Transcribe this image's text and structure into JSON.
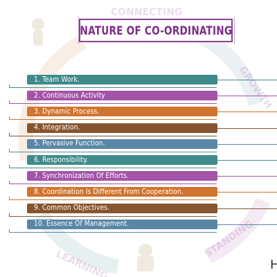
{
  "title": "NATURE OF CO-ORDINATING",
  "items": [
    {
      "label": "1. Team Work.",
      "color": "#3f8a8a"
    },
    {
      "label": "2. Continuous Activity",
      "color": "#a354a8"
    },
    {
      "label": "3. Dynamic Process.",
      "color": "#d0742f"
    },
    {
      "label": "4. Integration.",
      "color": "#86552f"
    },
    {
      "label": "5. Pervasive Function.",
      "color": "#5a87a6"
    },
    {
      "label": "6. Responsibility.",
      "color": "#3f8a8a"
    },
    {
      "label": "7. Synchronization Of Efforts.",
      "color": "#a354a8"
    },
    {
      "label": "8. Coordination Is Different From Cooperation.",
      "color": "#d0742f"
    },
    {
      "label": "9. Common Objectives.",
      "color": "#86552f"
    },
    {
      "label": "10. Essence Of Management.",
      "color": "#5a87a6"
    }
  ],
  "corner_text": "H",
  "watermark_text": [
    "CONNECTING",
    "GROWTH",
    "STANDING",
    "LEARNING"
  ]
}
